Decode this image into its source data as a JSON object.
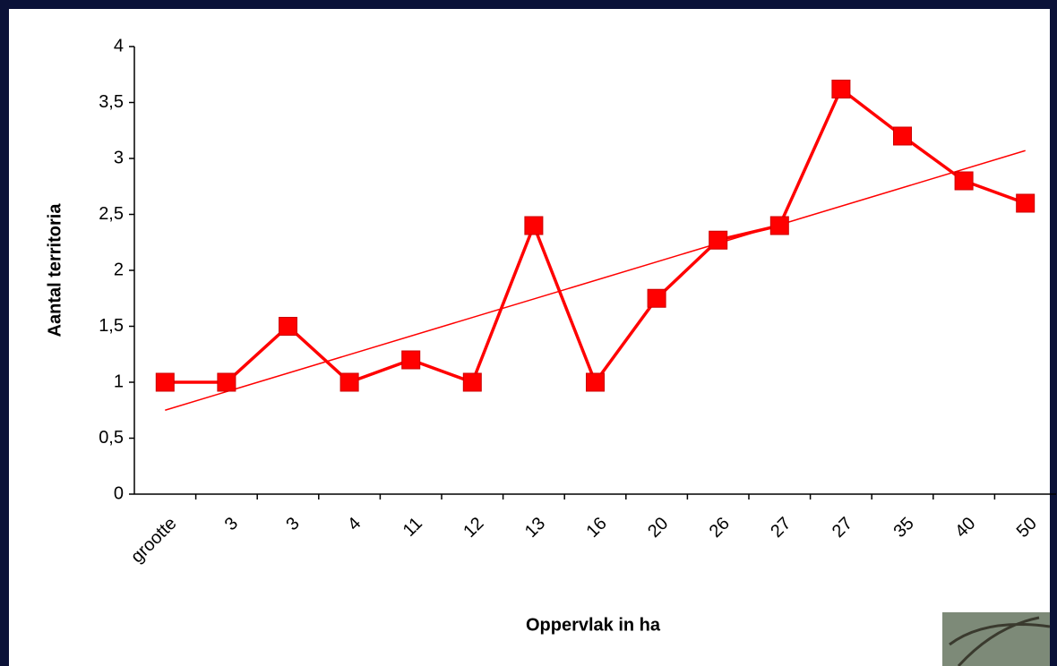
{
  "chart_data": {
    "type": "line",
    "y_label": "Aantal territoria",
    "x_label": "Oppervlak in ha",
    "categories": [
      "grootte",
      "3",
      "3",
      "4",
      "11",
      "12",
      "13",
      "16",
      "20",
      "26",
      "27",
      "27",
      "35",
      "40",
      "50"
    ],
    "series": [
      {
        "color": "#ff0000",
        "values": [
          1,
          1,
          1.5,
          1,
          1.2,
          1,
          2.4,
          1,
          1.75,
          2.27,
          2.4,
          3.62,
          3.2,
          2.8,
          2.6
        ]
      }
    ],
    "trendline": {
      "color": "#ff0000",
      "values": [
        0.75,
        3.07
      ]
    },
    "ylim": [
      0,
      4
    ],
    "yticks": [
      0,
      {
        "value": 0.5,
        "label": "0,5"
      },
      1,
      {
        "value": 1.5,
        "label": "1,5"
      },
      2,
      {
        "value": 2.5,
        "label": "2,5"
      },
      3,
      {
        "value": 3.5,
        "label": "3,5"
      },
      4
    ]
  }
}
